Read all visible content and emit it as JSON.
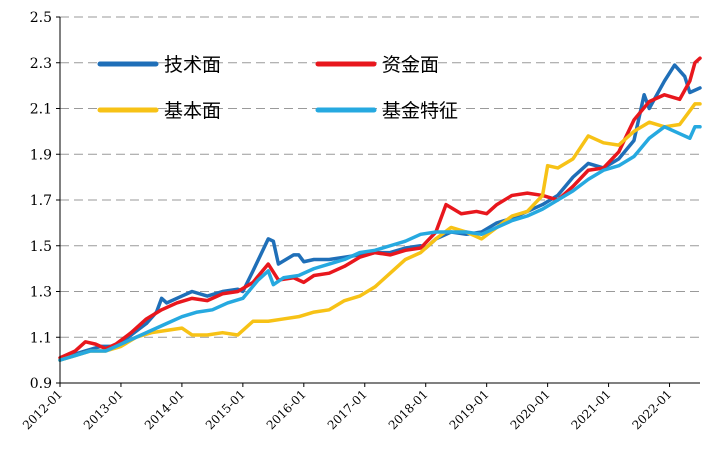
{
  "chart_data": {
    "type": "line",
    "title": "",
    "xlabel": "",
    "ylabel": "",
    "ylim": [
      0.9,
      2.5
    ],
    "yticks": [
      0.9,
      1.1,
      1.3,
      1.5,
      1.7,
      1.9,
      2.1,
      2.3,
      2.5
    ],
    "ytick_labels": [
      "0.9",
      "1.1",
      "1.3",
      "1.5",
      "1.7",
      "1.9",
      "2.1",
      "2.3",
      "2.5"
    ],
    "x_start": "2012-01",
    "x_end": "2022-07",
    "xtick_labels": [
      "2012-01",
      "2013-01",
      "2014-01",
      "2015-01",
      "2016-01",
      "2017-01",
      "2018-01",
      "2019-01",
      "2020-01",
      "2021-01",
      "2022-01"
    ],
    "grid": "horizontal dashed",
    "legend_position": "top-left, two columns",
    "series": [
      {
        "name": "技术面",
        "color": "#1f6fb8",
        "points": [
          [
            "2012-01",
            1.0
          ],
          [
            "2012-03",
            1.02
          ],
          [
            "2012-06",
            1.04
          ],
          [
            "2012-09",
            1.06
          ],
          [
            "2012-12",
            1.06
          ],
          [
            "2013-03",
            1.11
          ],
          [
            "2013-06",
            1.16
          ],
          [
            "2013-08",
            1.21
          ],
          [
            "2013-09",
            1.27
          ],
          [
            "2013-10",
            1.25
          ],
          [
            "2014-01",
            1.28
          ],
          [
            "2014-03",
            1.3
          ],
          [
            "2014-06",
            1.28
          ],
          [
            "2014-09",
            1.3
          ],
          [
            "2014-12",
            1.31
          ],
          [
            "2015-01",
            1.3
          ],
          [
            "2015-03",
            1.39
          ],
          [
            "2015-06",
            1.53
          ],
          [
            "2015-07",
            1.52
          ],
          [
            "2015-08",
            1.42
          ],
          [
            "2015-11",
            1.46
          ],
          [
            "2015-12",
            1.46
          ],
          [
            "2016-01",
            1.43
          ],
          [
            "2016-03",
            1.44
          ],
          [
            "2016-06",
            1.44
          ],
          [
            "2016-09",
            1.45
          ],
          [
            "2016-12",
            1.46
          ],
          [
            "2017-03",
            1.47
          ],
          [
            "2017-06",
            1.47
          ],
          [
            "2017-09",
            1.49
          ],
          [
            "2017-12",
            1.5
          ],
          [
            "2018-01",
            1.49
          ],
          [
            "2018-03",
            1.53
          ],
          [
            "2018-06",
            1.56
          ],
          [
            "2018-09",
            1.55
          ],
          [
            "2018-12",
            1.56
          ],
          [
            "2019-03",
            1.6
          ],
          [
            "2019-06",
            1.62
          ],
          [
            "2019-09",
            1.65
          ],
          [
            "2019-12",
            1.68
          ],
          [
            "2020-03",
            1.72
          ],
          [
            "2020-06",
            1.8
          ],
          [
            "2020-09",
            1.86
          ],
          [
            "2020-12",
            1.84
          ],
          [
            "2021-03",
            1.88
          ],
          [
            "2021-06",
            1.96
          ],
          [
            "2021-08",
            2.16
          ],
          [
            "2021-09",
            2.1
          ],
          [
            "2021-12",
            2.22
          ],
          [
            "2022-02",
            2.29
          ],
          [
            "2022-04",
            2.24
          ],
          [
            "2022-05",
            2.17
          ],
          [
            "2022-07",
            2.19
          ]
        ]
      },
      {
        "name": "资金面",
        "color": "#e8171d",
        "points": [
          [
            "2012-01",
            1.01
          ],
          [
            "2012-04",
            1.04
          ],
          [
            "2012-06",
            1.08
          ],
          [
            "2012-08",
            1.07
          ],
          [
            "2012-10",
            1.05
          ],
          [
            "2012-12",
            1.07
          ],
          [
            "2013-03",
            1.12
          ],
          [
            "2013-06",
            1.18
          ],
          [
            "2013-09",
            1.22
          ],
          [
            "2013-12",
            1.25
          ],
          [
            "2014-03",
            1.27
          ],
          [
            "2014-06",
            1.26
          ],
          [
            "2014-09",
            1.29
          ],
          [
            "2014-12",
            1.3
          ],
          [
            "2015-03",
            1.34
          ],
          [
            "2015-06",
            1.42
          ],
          [
            "2015-08",
            1.35
          ],
          [
            "2015-11",
            1.36
          ],
          [
            "2016-01",
            1.34
          ],
          [
            "2016-03",
            1.37
          ],
          [
            "2016-06",
            1.38
          ],
          [
            "2016-09",
            1.41
          ],
          [
            "2016-12",
            1.45
          ],
          [
            "2017-03",
            1.47
          ],
          [
            "2017-06",
            1.46
          ],
          [
            "2017-09",
            1.48
          ],
          [
            "2017-12",
            1.49
          ],
          [
            "2018-03",
            1.56
          ],
          [
            "2018-05",
            1.68
          ],
          [
            "2018-08",
            1.64
          ],
          [
            "2018-11",
            1.65
          ],
          [
            "2019-01",
            1.64
          ],
          [
            "2019-03",
            1.68
          ],
          [
            "2019-06",
            1.72
          ],
          [
            "2019-09",
            1.73
          ],
          [
            "2019-12",
            1.72
          ],
          [
            "2020-03",
            1.7
          ],
          [
            "2020-06",
            1.76
          ],
          [
            "2020-09",
            1.83
          ],
          [
            "2020-12",
            1.84
          ],
          [
            "2021-03",
            1.91
          ],
          [
            "2021-06",
            2.05
          ],
          [
            "2021-09",
            2.13
          ],
          [
            "2021-12",
            2.16
          ],
          [
            "2022-03",
            2.14
          ],
          [
            "2022-05",
            2.22
          ],
          [
            "2022-06",
            2.3
          ],
          [
            "2022-07",
            2.32
          ]
        ]
      },
      {
        "name": "基本面",
        "color": "#f7c216",
        "points": [
          [
            "2012-01",
            1.0
          ],
          [
            "2012-04",
            1.02
          ],
          [
            "2012-07",
            1.04
          ],
          [
            "2012-10",
            1.04
          ],
          [
            "2013-01",
            1.06
          ],
          [
            "2013-04",
            1.1
          ],
          [
            "2013-07",
            1.12
          ],
          [
            "2013-10",
            1.13
          ],
          [
            "2014-01",
            1.14
          ],
          [
            "2014-03",
            1.11
          ],
          [
            "2014-06",
            1.11
          ],
          [
            "2014-09",
            1.12
          ],
          [
            "2014-12",
            1.11
          ],
          [
            "2015-03",
            1.17
          ],
          [
            "2015-06",
            1.17
          ],
          [
            "2015-09",
            1.18
          ],
          [
            "2015-12",
            1.19
          ],
          [
            "2016-03",
            1.21
          ],
          [
            "2016-06",
            1.22
          ],
          [
            "2016-09",
            1.26
          ],
          [
            "2016-12",
            1.28
          ],
          [
            "2017-03",
            1.32
          ],
          [
            "2017-06",
            1.38
          ],
          [
            "2017-09",
            1.44
          ],
          [
            "2017-12",
            1.47
          ],
          [
            "2018-03",
            1.53
          ],
          [
            "2018-06",
            1.58
          ],
          [
            "2018-09",
            1.56
          ],
          [
            "2018-12",
            1.53
          ],
          [
            "2019-03",
            1.58
          ],
          [
            "2019-06",
            1.63
          ],
          [
            "2019-09",
            1.65
          ],
          [
            "2019-12",
            1.72
          ],
          [
            "2020-01",
            1.85
          ],
          [
            "2020-03",
            1.84
          ],
          [
            "2020-06",
            1.88
          ],
          [
            "2020-09",
            1.98
          ],
          [
            "2020-12",
            1.95
          ],
          [
            "2021-03",
            1.94
          ],
          [
            "2021-06",
            2.0
          ],
          [
            "2021-09",
            2.04
          ],
          [
            "2021-12",
            2.02
          ],
          [
            "2022-03",
            2.03
          ],
          [
            "2022-05",
            2.09
          ],
          [
            "2022-06",
            2.12
          ],
          [
            "2022-07",
            2.12
          ]
        ]
      },
      {
        "name": "基金特征",
        "color": "#26a9e0",
        "points": [
          [
            "2012-01",
            1.0
          ],
          [
            "2012-04",
            1.02
          ],
          [
            "2012-07",
            1.04
          ],
          [
            "2012-10",
            1.04
          ],
          [
            "2013-01",
            1.07
          ],
          [
            "2013-04",
            1.1
          ],
          [
            "2013-07",
            1.13
          ],
          [
            "2013-10",
            1.16
          ],
          [
            "2014-01",
            1.19
          ],
          [
            "2014-04",
            1.21
          ],
          [
            "2014-07",
            1.22
          ],
          [
            "2014-10",
            1.25
          ],
          [
            "2015-01",
            1.27
          ],
          [
            "2015-04",
            1.35
          ],
          [
            "2015-06",
            1.39
          ],
          [
            "2015-07",
            1.33
          ],
          [
            "2015-09",
            1.36
          ],
          [
            "2015-12",
            1.37
          ],
          [
            "2016-03",
            1.4
          ],
          [
            "2016-06",
            1.42
          ],
          [
            "2016-09",
            1.44
          ],
          [
            "2016-12",
            1.47
          ],
          [
            "2017-03",
            1.48
          ],
          [
            "2017-06",
            1.5
          ],
          [
            "2017-09",
            1.52
          ],
          [
            "2017-12",
            1.55
          ],
          [
            "2018-03",
            1.56
          ],
          [
            "2018-06",
            1.56
          ],
          [
            "2018-09",
            1.56
          ],
          [
            "2018-12",
            1.55
          ],
          [
            "2019-03",
            1.58
          ],
          [
            "2019-06",
            1.61
          ],
          [
            "2019-09",
            1.63
          ],
          [
            "2019-12",
            1.66
          ],
          [
            "2020-03",
            1.7
          ],
          [
            "2020-06",
            1.74
          ],
          [
            "2020-09",
            1.79
          ],
          [
            "2020-12",
            1.83
          ],
          [
            "2021-03",
            1.85
          ],
          [
            "2021-06",
            1.89
          ],
          [
            "2021-09",
            1.97
          ],
          [
            "2021-12",
            2.02
          ],
          [
            "2022-03",
            1.99
          ],
          [
            "2022-05",
            1.97
          ],
          [
            "2022-06",
            2.02
          ],
          [
            "2022-07",
            2.02
          ]
        ]
      }
    ]
  }
}
